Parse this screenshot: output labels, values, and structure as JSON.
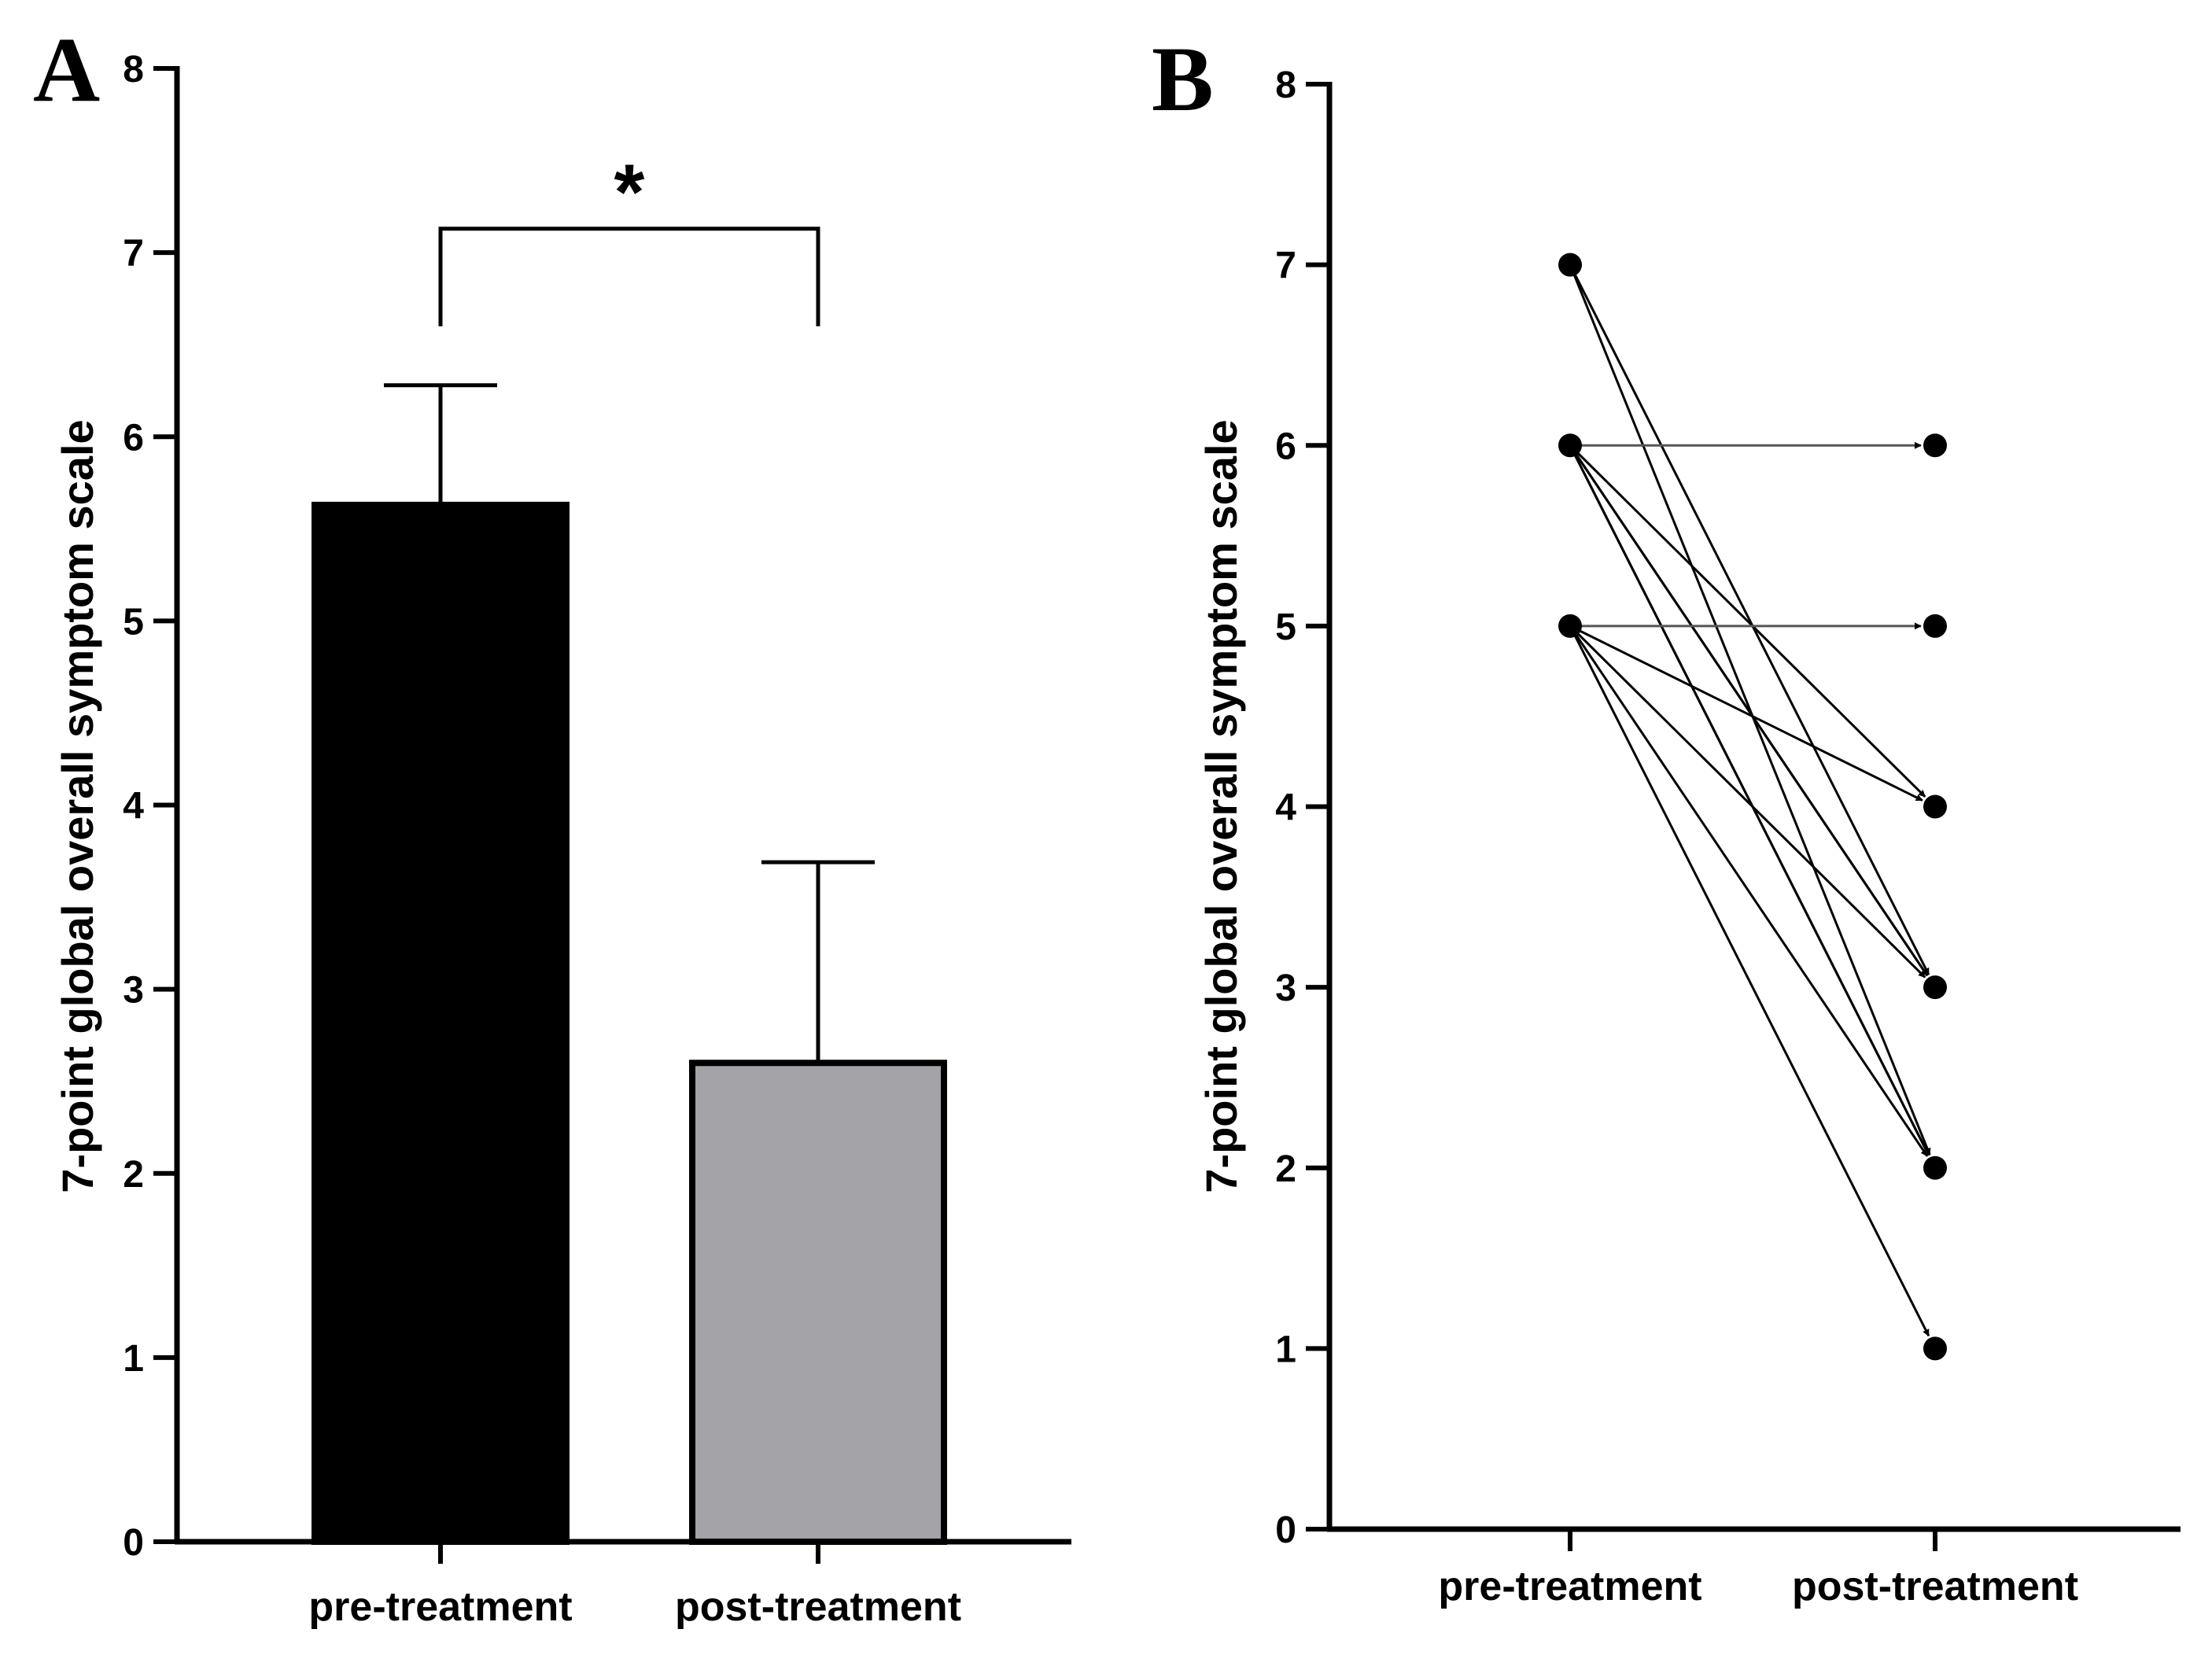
{
  "chart_data": [
    {
      "panel": "A",
      "type": "bar",
      "title": "",
      "categories": [
        "pre-treatment",
        "post-treatment"
      ],
      "values": [
        5.63,
        2.6
      ],
      "error_upper": [
        6.28,
        3.69
      ],
      "bar_colors": [
        "#000000",
        "#a3a3a8"
      ],
      "ylabel": "7-point global overall symptom scale",
      "xlabel": "",
      "ylim": [
        0,
        8
      ],
      "yticks": [
        0,
        1,
        2,
        3,
        4,
        5,
        6,
        7,
        8
      ],
      "grid": false,
      "significance": {
        "between": [
          "pre-treatment",
          "post-treatment"
        ],
        "label": "*"
      }
    },
    {
      "panel": "B",
      "type": "line",
      "title": "",
      "categories": [
        "pre-treatment",
        "post-treatment"
      ],
      "ylabel": "7-point global overall symptom scale",
      "xlabel": "",
      "ylim": [
        0,
        8
      ],
      "yticks": [
        0,
        1,
        2,
        3,
        4,
        5,
        6,
        7,
        8
      ],
      "grid": false,
      "style": "paired arrows (before to after)",
      "pairs": [
        {
          "pre": 7,
          "post": 3
        },
        {
          "pre": 7,
          "post": 2
        },
        {
          "pre": 6,
          "post": 6
        },
        {
          "pre": 6,
          "post": 4
        },
        {
          "pre": 6,
          "post": 3
        },
        {
          "pre": 6,
          "post": 3
        },
        {
          "pre": 6,
          "post": 2
        },
        {
          "pre": 6,
          "post": 2
        },
        {
          "pre": 5,
          "post": 5
        },
        {
          "pre": 5,
          "post": 4
        },
        {
          "pre": 5,
          "post": 3
        },
        {
          "pre": 5,
          "post": 2
        },
        {
          "pre": 5,
          "post": 1
        }
      ]
    }
  ]
}
